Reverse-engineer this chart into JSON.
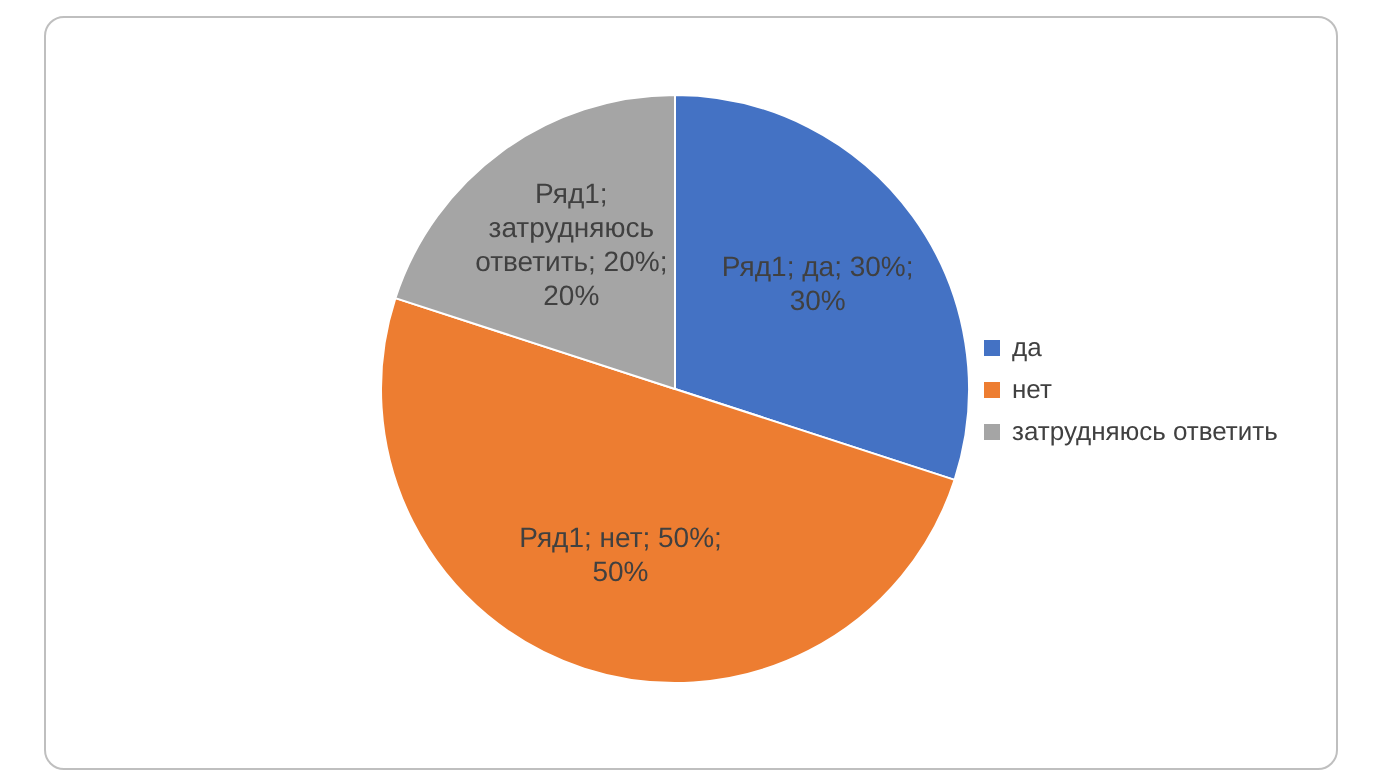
{
  "chart_data": {
    "type": "pie",
    "categories": [
      "да",
      "нет",
      "затрудняюсь ответить"
    ],
    "series": [
      {
        "values": [
          30,
          50,
          20
        ],
        "colors": [
          "#4472c4",
          "#ed7d31",
          "#a5a5a5"
        ],
        "value_labels": [
          "Ряд1; да; 30%; 30%",
          "Ряд1; нет; 50%; 50%",
          "Ряд1; затрудняюсь ответить; 20%; 20%"
        ]
      }
    ],
    "legend": "right"
  }
}
